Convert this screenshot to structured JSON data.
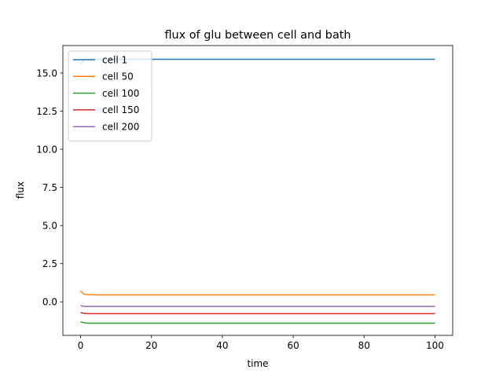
{
  "chart_data": {
    "type": "line",
    "title": "flux of glu between cell and bath",
    "xlabel": "time",
    "ylabel": "flux",
    "xlim": [
      -5,
      105
    ],
    "ylim": [
      -2.2,
      16.8
    ],
    "xticks": [
      0,
      20,
      40,
      60,
      80,
      100
    ],
    "xtick_labels": [
      "0",
      "20",
      "40",
      "60",
      "80",
      "100"
    ],
    "yticks": [
      0.0,
      2.5,
      5.0,
      7.5,
      10.0,
      12.5,
      15.0
    ],
    "ytick_labels": [
      "0.0",
      "2.5",
      "5.0",
      "7.5",
      "10.0",
      "12.5",
      "15.0"
    ],
    "grid": false,
    "legend_position": "top-left",
    "series": [
      {
        "name": "cell 1",
        "color": "#1f77b4",
        "x": [
          0,
          1,
          2,
          5,
          10,
          20,
          40,
          60,
          80,
          100
        ],
        "y": [
          15.6,
          15.85,
          15.9,
          15.9,
          15.9,
          15.9,
          15.9,
          15.9,
          15.9,
          15.9
        ]
      },
      {
        "name": "cell 50",
        "color": "#ff7f0e",
        "x": [
          0,
          1,
          2,
          5,
          10,
          20,
          40,
          60,
          80,
          100
        ],
        "y": [
          0.7,
          0.5,
          0.47,
          0.45,
          0.45,
          0.45,
          0.45,
          0.45,
          0.45,
          0.45
        ]
      },
      {
        "name": "cell 100",
        "color": "#2ca02c",
        "x": [
          0,
          1,
          2,
          5,
          10,
          20,
          40,
          60,
          80,
          100
        ],
        "y": [
          -1.3,
          -1.38,
          -1.4,
          -1.4,
          -1.4,
          -1.4,
          -1.4,
          -1.4,
          -1.4,
          -1.4
        ]
      },
      {
        "name": "cell 150",
        "color": "#d62728",
        "x": [
          0,
          1,
          2,
          5,
          10,
          20,
          40,
          60,
          80,
          100
        ],
        "y": [
          -0.7,
          -0.76,
          -0.78,
          -0.78,
          -0.78,
          -0.78,
          -0.78,
          -0.78,
          -0.78,
          -0.78
        ]
      },
      {
        "name": "cell 200",
        "color": "#9467bd",
        "x": [
          0,
          1,
          2,
          5,
          10,
          20,
          40,
          60,
          80,
          100
        ],
        "y": [
          -0.25,
          -0.3,
          -0.3,
          -0.3,
          -0.3,
          -0.3,
          -0.3,
          -0.3,
          -0.3,
          -0.3
        ]
      }
    ]
  }
}
